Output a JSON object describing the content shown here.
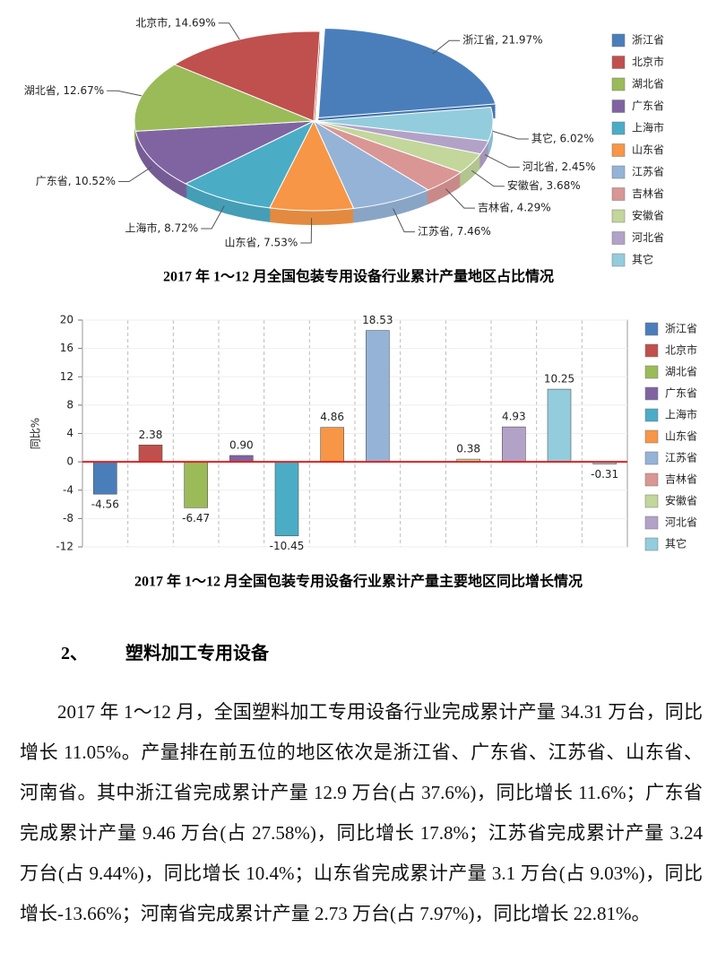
{
  "chart_data": [
    {
      "type": "pie",
      "title": "2017 年 1～12 月全国包装专用设备行业累计产量地区占比情况",
      "categories": [
        "浙江省",
        "北京市",
        "湖北省",
        "广东省",
        "上海市",
        "山东省",
        "江苏省",
        "吉林省",
        "安徽省",
        "河北省",
        "其它"
      ],
      "values": [
        21.97,
        14.69,
        12.67,
        10.52,
        8.72,
        7.53,
        7.46,
        4.29,
        3.68,
        2.45,
        6.02
      ],
      "value_labels": [
        "浙江省, 21.97%",
        "北京市, 14.69%",
        "湖北省, 12.67%",
        "广东省, 10.52%",
        "上海市, 8.72%",
        "山东省, 7.53%",
        "江苏省, 7.46%",
        "吉林省, 4.29%",
        "安徽省, 3.68%",
        "河北省, 2.45%",
        "其它, 6.02%"
      ],
      "colors": [
        "#4a7ebb",
        "#c0504d",
        "#9bbb59",
        "#8064a2",
        "#4bacc6",
        "#f79646",
        "#95b3d7",
        "#d99694",
        "#c3d69b",
        "#b3a2c7",
        "#93cddd"
      ],
      "legend": "right"
    },
    {
      "type": "bar",
      "title": "2017 年 1～12 月全国包装专用设备行业累计产量主要地区同比增长情况",
      "y_label": "同比%",
      "categories": [
        "浙江省",
        "北京市",
        "湖北省",
        "广东省",
        "上海市",
        "山东省",
        "江苏省",
        "吉林省",
        "安徽省",
        "河北省",
        "其它",
        null
      ],
      "values": [
        -4.56,
        2.38,
        -6.47,
        0.9,
        -10.45,
        4.86,
        18.53,
        null,
        0.38,
        4.93,
        10.25,
        -0.31
      ],
      "value_labels": [
        "-4.56",
        "2.38",
        "-6.47",
        "0.90",
        "-10.45",
        "4.86",
        "18.53",
        null,
        "0.38",
        "4.93",
        "10.25",
        "-0.31"
      ],
      "colors": [
        "#4a7ebb",
        "#c0504d",
        "#9bbb59",
        "#8064a2",
        "#4bacc6",
        "#f79646",
        "#95b3d7",
        "#d99694",
        "#c3d69b",
        "#b3a2c7",
        "#93cddd",
        "#93cddd"
      ],
      "ylim": [
        -12,
        20
      ],
      "yticks": [
        -12,
        -8,
        -4,
        0,
        4,
        8,
        12,
        16,
        20
      ],
      "grid": true,
      "legend": "right"
    }
  ],
  "section": {
    "number": "2、",
    "heading": "塑料加工专用设备",
    "paragraph": "2017 年 1～12 月，全国塑料加工专用设备行业完成累计产量 34.31 万台，同比增长 11.05%。产量排在前五位的地区依次是浙江省、广东省、江苏省、山东省、河南省。其中浙江省完成累计产量 12.9 万台(占 37.6%)，同比增长 11.6%；广东省完成累计产量 9.46 万台(占 27.58%)，同比增长 17.8%；江苏省完成累计产量 3.24 万台(占 9.44%)，同比增长 10.4%；山东省完成累计产量 3.1 万台(占 9.03%)，同比增长-13.66%；河南省完成累计产量 2.73 万台(占 7.97%)，同比增长 22.81%。"
  }
}
